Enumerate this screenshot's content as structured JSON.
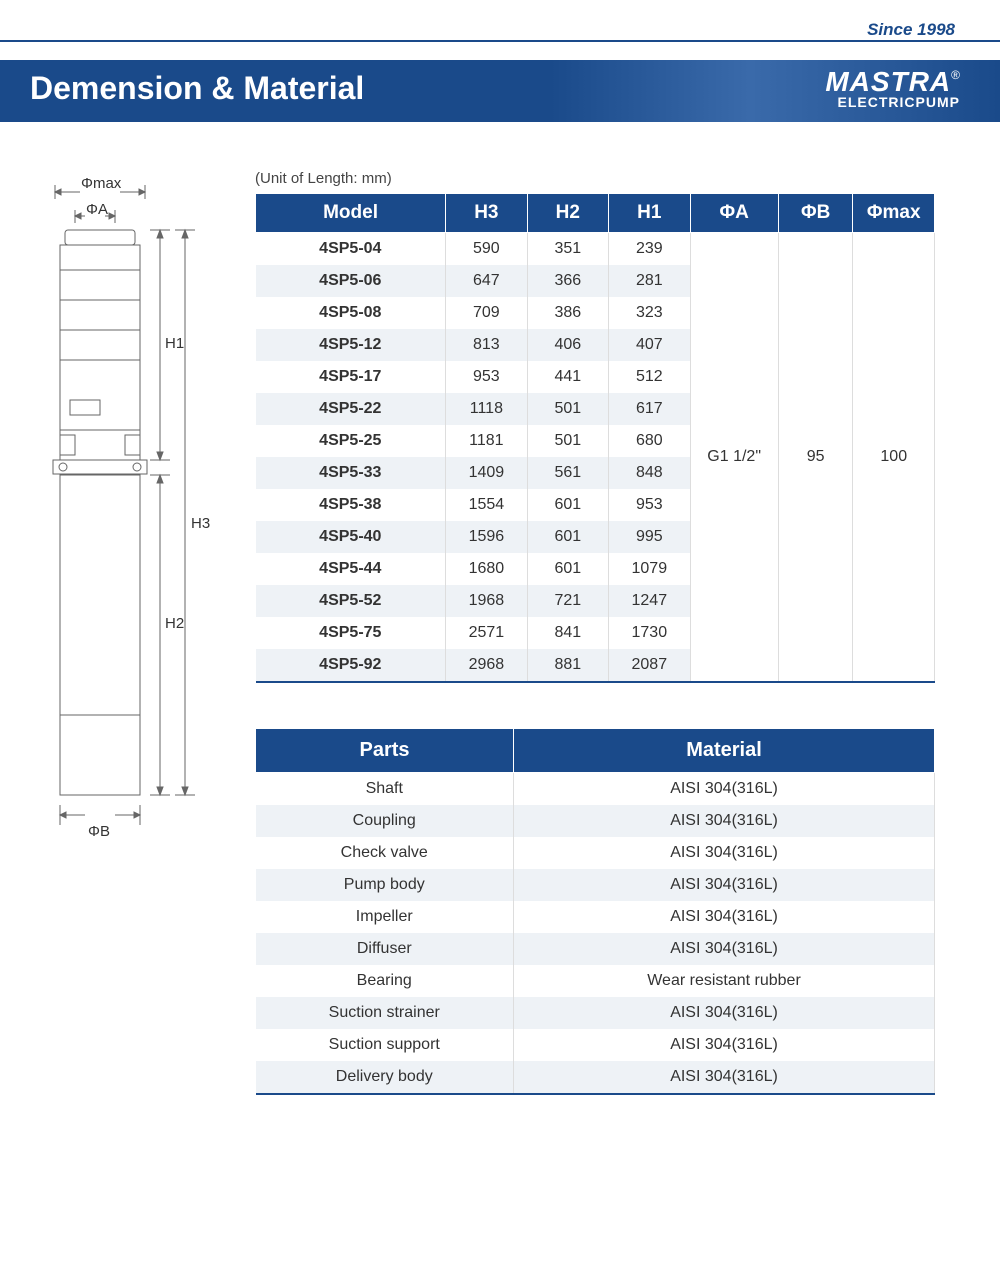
{
  "header": {
    "since": "Since 1998",
    "title": "Demension & Material",
    "logo_main": "MASTRA",
    "logo_reg": "®",
    "logo_sub": "ELECTRICPUMP"
  },
  "colors": {
    "primary": "#1a4a8a",
    "row_alt": "#eef2f6",
    "border": "#dddddd",
    "text": "#333333",
    "white": "#ffffff"
  },
  "unit_label": "(Unit of Length: mm)",
  "diagram": {
    "labels": {
      "phi_max": "Φmax",
      "phi_a": "ΦA",
      "phi_b": "ΦB",
      "h1": "H1",
      "h2": "H2",
      "h3": "H3"
    }
  },
  "dimensions_table": {
    "columns": [
      "Model",
      "H3",
      "H2",
      "H1",
      "ΦA",
      "ΦB",
      "Φmax"
    ],
    "col_widths_pct": [
      28,
      12,
      12,
      12,
      13,
      11,
      12
    ],
    "merged": {
      "phiA": "G1 1/2\"",
      "phiB": "95",
      "phiMax": "100"
    },
    "rows": [
      {
        "model": "4SP5-04",
        "h3": "590",
        "h2": "351",
        "h1": "239"
      },
      {
        "model": "4SP5-06",
        "h3": "647",
        "h2": "366",
        "h1": "281"
      },
      {
        "model": "4SP5-08",
        "h3": "709",
        "h2": "386",
        "h1": "323"
      },
      {
        "model": "4SP5-12",
        "h3": "813",
        "h2": "406",
        "h1": "407"
      },
      {
        "model": "4SP5-17",
        "h3": "953",
        "h2": "441",
        "h1": "512"
      },
      {
        "model": "4SP5-22",
        "h3": "1118",
        "h2": "501",
        "h1": "617"
      },
      {
        "model": "4SP5-25",
        "h3": "1181",
        "h2": "501",
        "h1": "680"
      },
      {
        "model": "4SP5-33",
        "h3": "1409",
        "h2": "561",
        "h1": "848"
      },
      {
        "model": "4SP5-38",
        "h3": "1554",
        "h2": "601",
        "h1": "953"
      },
      {
        "model": "4SP5-40",
        "h3": "1596",
        "h2": "601",
        "h1": "995"
      },
      {
        "model": "4SP5-44",
        "h3": "1680",
        "h2": "601",
        "h1": "1079"
      },
      {
        "model": "4SP5-52",
        "h3": "1968",
        "h2": "721",
        "h1": "1247"
      },
      {
        "model": "4SP5-75",
        "h3": "2571",
        "h2": "841",
        "h1": "1730"
      },
      {
        "model": "4SP5-92",
        "h3": "2968",
        "h2": "881",
        "h1": "2087"
      }
    ]
  },
  "materials_table": {
    "columns": [
      "Parts",
      "Material"
    ],
    "col_widths_pct": [
      38,
      62
    ],
    "rows": [
      {
        "part": "Shaft",
        "material": "AISI 304(316L)"
      },
      {
        "part": "Coupling",
        "material": "AISI 304(316L)"
      },
      {
        "part": "Check valve",
        "material": "AISI 304(316L)"
      },
      {
        "part": "Pump body",
        "material": "AISI 304(316L)"
      },
      {
        "part": "Impeller",
        "material": "AISI 304(316L)"
      },
      {
        "part": "Diffuser",
        "material": "AISI 304(316L)"
      },
      {
        "part": "Bearing",
        "material": "Wear resistant rubber"
      },
      {
        "part": "Suction strainer",
        "material": "AISI 304(316L)"
      },
      {
        "part": "Suction support",
        "material": "AISI 304(316L)"
      },
      {
        "part": "Delivery body",
        "material": "AISI 304(316L)"
      }
    ]
  }
}
